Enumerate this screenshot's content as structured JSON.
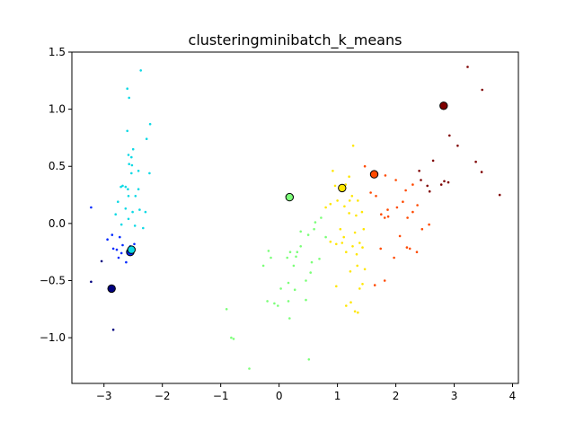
{
  "chart_data": {
    "type": "scatter",
    "title": "clusteringminibatch_k_means",
    "xlabel": "",
    "ylabel": "",
    "xlim": [
      -3.55,
      4.1
    ],
    "ylim": [
      -1.4,
      1.5
    ],
    "xticks": [
      -3,
      -2,
      -1,
      0,
      1,
      2,
      3,
      4
    ],
    "yticks": [
      -1.0,
      -0.5,
      0.0,
      0.5,
      1.0,
      1.5
    ],
    "xtick_labels": [
      "−3",
      "−2",
      "−1",
      "0",
      "1",
      "2",
      "3",
      "4"
    ],
    "ytick_labels": [
      "−1.0",
      "−0.5",
      "0.0",
      "0.5",
      "1.0",
      "1.5"
    ],
    "grid": false,
    "legend": "none",
    "series": [
      {
        "color": "#00007f",
        "points": [
          [
            -3.22,
            -0.51
          ],
          [
            -3.04,
            -0.33
          ],
          [
            -2.84,
            -0.93
          ]
        ]
      },
      {
        "color": "#0028ff",
        "points": [
          [
            -3.22,
            0.14
          ],
          [
            -2.94,
            -0.14
          ],
          [
            -2.86,
            -0.1
          ],
          [
            -2.84,
            -0.22
          ],
          [
            -2.78,
            -0.23
          ],
          [
            -2.73,
            -0.12
          ],
          [
            -2.7,
            -0.26
          ],
          [
            -2.68,
            -0.19
          ],
          [
            -2.62,
            -0.34
          ],
          [
            -2.55,
            -0.2
          ],
          [
            -2.48,
            -0.18
          ],
          [
            -2.75,
            -0.3
          ]
        ]
      },
      {
        "color": "#0dd9e5",
        "points": [
          [
            -2.37,
            1.34
          ],
          [
            -2.6,
            1.18
          ],
          [
            -2.57,
            1.1
          ],
          [
            -2.21,
            0.87
          ],
          [
            -2.27,
            0.74
          ],
          [
            -2.6,
            0.81
          ],
          [
            -2.5,
            0.65
          ],
          [
            -2.58,
            0.6
          ],
          [
            -2.53,
            0.58
          ],
          [
            -2.57,
            0.52
          ],
          [
            -2.52,
            0.51
          ],
          [
            -2.41,
            0.46
          ],
          [
            -2.53,
            0.44
          ],
          [
            -2.22,
            0.44
          ],
          [
            -2.68,
            0.33
          ],
          [
            -2.71,
            0.32
          ],
          [
            -2.63,
            0.32
          ],
          [
            -2.59,
            0.3
          ],
          [
            -2.41,
            0.3
          ],
          [
            -2.46,
            0.24
          ],
          [
            -2.58,
            0.24
          ],
          [
            -2.76,
            0.19
          ],
          [
            -2.63,
            0.13
          ],
          [
            -2.39,
            0.12
          ],
          [
            -2.51,
            0.1
          ],
          [
            -2.29,
            0.1
          ],
          [
            -2.8,
            0.08
          ],
          [
            -2.58,
            0.04
          ],
          [
            -2.7,
            -0.01
          ],
          [
            -2.47,
            -0.02
          ],
          [
            -2.33,
            -0.04
          ]
        ]
      },
      {
        "color": "#7cff79",
        "points": [
          [
            -0.51,
            -1.27
          ],
          [
            -0.82,
            -1.0
          ],
          [
            -0.78,
            -1.01
          ],
          [
            -0.9,
            -0.75
          ],
          [
            0.51,
            -1.19
          ],
          [
            -0.2,
            -0.68
          ],
          [
            -0.08,
            -0.7
          ],
          [
            -0.02,
            -0.72
          ],
          [
            0.18,
            -0.83
          ],
          [
            0.16,
            -0.68
          ],
          [
            0.46,
            -0.67
          ],
          [
            0.03,
            -0.57
          ],
          [
            0.27,
            -0.58
          ],
          [
            0.16,
            -0.52
          ],
          [
            0.46,
            -0.5
          ],
          [
            0.54,
            -0.43
          ],
          [
            0.14,
            -0.3
          ],
          [
            0.25,
            -0.37
          ],
          [
            0.56,
            -0.34
          ],
          [
            0.69,
            -0.31
          ],
          [
            0.29,
            -0.29
          ],
          [
            0.37,
            -0.2
          ],
          [
            0.19,
            -0.25
          ],
          [
            0.31,
            -0.25
          ],
          [
            -0.27,
            -0.37
          ],
          [
            -0.14,
            -0.3
          ],
          [
            0.5,
            -0.1
          ],
          [
            0.6,
            -0.05
          ],
          [
            0.37,
            -0.07
          ],
          [
            0.62,
            0.01
          ],
          [
            0.8,
            -0.12
          ],
          [
            0.72,
            0.05
          ],
          [
            -0.18,
            -0.24
          ]
        ]
      },
      {
        "color": "#ffe600",
        "points": [
          [
            0.92,
            0.46
          ],
          [
            1.27,
            0.68
          ],
          [
            0.96,
            0.33
          ],
          [
            1.2,
            0.41
          ],
          [
            1.14,
            0.34
          ],
          [
            1.25,
            0.24
          ],
          [
            0.8,
            0.14
          ],
          [
            0.88,
            0.17
          ],
          [
            1.0,
            0.2
          ],
          [
            1.12,
            0.15
          ],
          [
            1.21,
            0.2
          ],
          [
            1.35,
            0.2
          ],
          [
            1.42,
            0.1
          ],
          [
            1.2,
            0.09
          ],
          [
            1.32,
            0.07
          ],
          [
            1.45,
            -0.05
          ],
          [
            1.3,
            -0.08
          ],
          [
            1.05,
            -0.05
          ],
          [
            1.11,
            -0.12
          ],
          [
            0.88,
            -0.16
          ],
          [
            0.98,
            -0.18
          ],
          [
            1.08,
            -0.17
          ],
          [
            1.26,
            -0.2
          ],
          [
            1.38,
            -0.17
          ],
          [
            1.15,
            -0.25
          ],
          [
            1.33,
            -0.27
          ],
          [
            1.43,
            -0.21
          ],
          [
            1.47,
            -0.4
          ],
          [
            1.34,
            -0.37
          ],
          [
            1.22,
            -0.42
          ],
          [
            1.43,
            -0.53
          ],
          [
            1.38,
            -0.57
          ],
          [
            0.98,
            -0.55
          ],
          [
            1.23,
            -0.69
          ],
          [
            1.3,
            -0.77
          ],
          [
            1.35,
            -0.78
          ],
          [
            1.15,
            -0.72
          ]
        ]
      },
      {
        "color": "#ff4a00",
        "points": [
          [
            1.47,
            0.5
          ],
          [
            1.82,
            0.42
          ],
          [
            1.57,
            0.27
          ],
          [
            1.66,
            0.24
          ],
          [
            2.0,
            0.38
          ],
          [
            2.29,
            0.34
          ],
          [
            2.17,
            0.29
          ],
          [
            2.12,
            0.19
          ],
          [
            2.37,
            0.16
          ],
          [
            2.02,
            0.14
          ],
          [
            1.86,
            0.12
          ],
          [
            2.29,
            0.1
          ],
          [
            1.75,
            0.08
          ],
          [
            1.81,
            0.05
          ],
          [
            1.87,
            0.06
          ],
          [
            2.2,
            0.05
          ],
          [
            2.45,
            -0.05
          ],
          [
            2.57,
            -0.01
          ],
          [
            2.07,
            -0.11
          ],
          [
            1.74,
            -0.22
          ],
          [
            2.19,
            -0.21
          ],
          [
            2.24,
            -0.22
          ],
          [
            2.36,
            -0.25
          ],
          [
            1.97,
            -0.3
          ],
          [
            1.81,
            -0.5
          ],
          [
            1.64,
            -0.54
          ]
        ]
      },
      {
        "color": "#7f0000",
        "points": [
          [
            3.23,
            1.37
          ],
          [
            3.48,
            1.17
          ],
          [
            2.92,
            0.77
          ],
          [
            3.06,
            0.68
          ],
          [
            2.64,
            0.55
          ],
          [
            3.37,
            0.54
          ],
          [
            3.47,
            0.45
          ],
          [
            2.4,
            0.46
          ],
          [
            2.43,
            0.38
          ],
          [
            2.83,
            0.37
          ],
          [
            2.9,
            0.36
          ],
          [
            2.78,
            0.34
          ],
          [
            2.54,
            0.33
          ],
          [
            2.58,
            0.28
          ],
          [
            3.78,
            0.25
          ]
        ]
      }
    ],
    "centers": [
      {
        "color": "#00007f",
        "x": -2.87,
        "y": -0.57
      },
      {
        "color": "#0028ff",
        "x": -2.55,
        "y": -0.25
      },
      {
        "color": "#0dd9e5",
        "x": -2.53,
        "y": -0.23
      },
      {
        "color": "#7cff79",
        "x": 0.18,
        "y": 0.23
      },
      {
        "color": "#ffe600",
        "x": 1.08,
        "y": 0.31
      },
      {
        "color": "#ff4a00",
        "x": 1.63,
        "y": 0.43
      },
      {
        "color": "#7f0000",
        "x": 2.82,
        "y": 1.03
      }
    ]
  }
}
